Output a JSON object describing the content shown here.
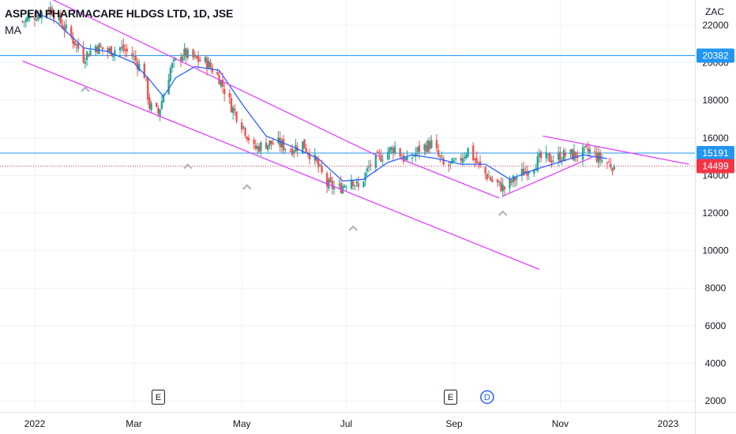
{
  "header": {
    "title": "ASPEN PHARMACARE HLDGS LTD, 1D, JSE",
    "indicator": "MA",
    "currency": "ZAC"
  },
  "colors": {
    "up": "#26a69a",
    "down": "#ef5350",
    "ma": "#2962ff",
    "trendline": "#e040fb",
    "hline": "#2196f3",
    "last_price": "#f23645",
    "grid": "#f0f3fa"
  },
  "chart_data": {
    "type": "candlestick",
    "y_axis": {
      "min": 1600,
      "max": 23500,
      "ticks": [
        2000,
        4000,
        6000,
        8000,
        10000,
        12000,
        14000,
        16000,
        18000,
        20000,
        22000
      ]
    },
    "x_axis": {
      "range": [
        "2021-12-27",
        "2023-01-20"
      ],
      "ticks": [
        {
          "label": "2022",
          "date": "2022-01-03"
        },
        {
          "label": "Mar",
          "date": "2022-03-01"
        },
        {
          "label": "May",
          "date": "2022-05-02"
        },
        {
          "label": "Jul",
          "date": "2022-07-01"
        },
        {
          "label": "Sep",
          "date": "2022-09-01"
        },
        {
          "label": "Nov",
          "date": "2022-11-01"
        },
        {
          "label": "2023",
          "date": "2023-01-02"
        }
      ]
    },
    "close_path": [
      [
        "2021-12-27",
        22200
      ],
      [
        "2022-01-05",
        22600
      ],
      [
        "2022-01-12",
        22900
      ],
      [
        "2022-01-19",
        22000
      ],
      [
        "2022-01-26",
        21100
      ],
      [
        "2022-01-31",
        20300
      ],
      [
        "2022-02-07",
        20900
      ],
      [
        "2022-02-14",
        20600
      ],
      [
        "2022-02-21",
        20800
      ],
      [
        "2022-02-28",
        20400
      ],
      [
        "2022-03-07",
        19400
      ],
      [
        "2022-03-10",
        17700
      ],
      [
        "2022-03-15",
        17300
      ],
      [
        "2022-03-22",
        19700
      ],
      [
        "2022-03-29",
        20500
      ],
      [
        "2022-04-05",
        20200
      ],
      [
        "2022-04-12",
        20000
      ],
      [
        "2022-04-19",
        19200
      ],
      [
        "2022-04-26",
        17700
      ],
      [
        "2022-05-03",
        16600
      ],
      [
        "2022-05-09",
        15400
      ],
      [
        "2022-05-16",
        15700
      ],
      [
        "2022-05-23",
        15700
      ],
      [
        "2022-05-30",
        15400
      ],
      [
        "2022-06-06",
        15700
      ],
      [
        "2022-06-13",
        14800
      ],
      [
        "2022-06-20",
        13500
      ],
      [
        "2022-06-27",
        13300
      ],
      [
        "2022-07-04",
        13900
      ],
      [
        "2022-07-08",
        13300
      ],
      [
        "2022-07-15",
        14600
      ],
      [
        "2022-07-22",
        15100
      ],
      [
        "2022-07-29",
        15500
      ],
      [
        "2022-08-05",
        14700
      ],
      [
        "2022-08-12",
        15400
      ],
      [
        "2022-08-19",
        15700
      ],
      [
        "2022-08-26",
        14500
      ],
      [
        "2022-09-02",
        14600
      ],
      [
        "2022-09-09",
        15400
      ],
      [
        "2022-09-16",
        14400
      ],
      [
        "2022-09-23",
        13700
      ],
      [
        "2022-09-30",
        13300
      ],
      [
        "2022-10-07",
        13900
      ],
      [
        "2022-10-14",
        14400
      ],
      [
        "2022-10-21",
        14900
      ],
      [
        "2022-10-28",
        14900
      ],
      [
        "2022-11-04",
        15100
      ],
      [
        "2022-11-11",
        15100
      ],
      [
        "2022-11-18",
        15300
      ],
      [
        "2022-11-25",
        14800
      ],
      [
        "2022-12-02",
        14499
      ]
    ],
    "moving_average": [
      [
        "2022-01-03",
        22700
      ],
      [
        "2022-01-15",
        22200
      ],
      [
        "2022-01-31",
        20800
      ],
      [
        "2022-02-14",
        20600
      ],
      [
        "2022-03-01",
        20000
      ],
      [
        "2022-03-10",
        19100
      ],
      [
        "2022-03-18",
        18200
      ],
      [
        "2022-03-25",
        19200
      ],
      [
        "2022-04-05",
        19800
      ],
      [
        "2022-04-19",
        19600
      ],
      [
        "2022-05-03",
        17700
      ],
      [
        "2022-05-16",
        16100
      ],
      [
        "2022-06-01",
        15500
      ],
      [
        "2022-06-15",
        14900
      ],
      [
        "2022-06-29",
        13700
      ],
      [
        "2022-07-11",
        13800
      ],
      [
        "2022-07-25",
        14700
      ],
      [
        "2022-08-08",
        15100
      ],
      [
        "2022-08-22",
        14900
      ],
      [
        "2022-09-05",
        14600
      ],
      [
        "2022-09-19",
        14600
      ],
      [
        "2022-10-03",
        13800
      ],
      [
        "2022-10-17",
        14300
      ],
      [
        "2022-10-31",
        14700
      ],
      [
        "2022-11-14",
        15100
      ],
      [
        "2022-11-28",
        14900
      ]
    ],
    "trendlines": [
      {
        "from": [
          "2022-01-08",
          23600
        ],
        "to": [
          "2022-07-20",
          15000
        ]
      },
      {
        "from": [
          "2021-12-27",
          20100
        ],
        "to": [
          "2022-10-20",
          9000
        ]
      },
      {
        "from": [
          "2022-08-01",
          14900
        ],
        "to": [
          "2022-09-27",
          12800
        ]
      },
      {
        "from": [
          "2022-09-29",
          12900
        ],
        "to": [
          "2022-11-20",
          15000
        ]
      },
      {
        "from": [
          "2022-10-22",
          16100
        ],
        "to": [
          "2023-01-14",
          14600
        ]
      }
    ],
    "horizontal_lines": [
      20382,
      15191
    ],
    "price_labels": [
      {
        "text": "20382",
        "value": 20382
      },
      {
        "text": "15191",
        "value": 15191
      },
      {
        "text": "14499",
        "value": 14499
      }
    ],
    "last_price": 14499,
    "swing_markers": [
      [
        "2022-02-01",
        18600
      ],
      [
        "2022-04-01",
        14500
      ],
      [
        "2022-05-05",
        13400
      ],
      [
        "2022-07-05",
        11200
      ],
      [
        "2022-09-29",
        12000
      ]
    ],
    "events": [
      {
        "label": "E",
        "date": "2022-03-15",
        "value": 2200,
        "kind": "earnings"
      },
      {
        "label": "E",
        "date": "2022-08-30",
        "value": 2200,
        "kind": "earnings"
      },
      {
        "label": "D",
        "date": "2022-09-20",
        "value": 2200,
        "kind": "dividend"
      }
    ]
  }
}
